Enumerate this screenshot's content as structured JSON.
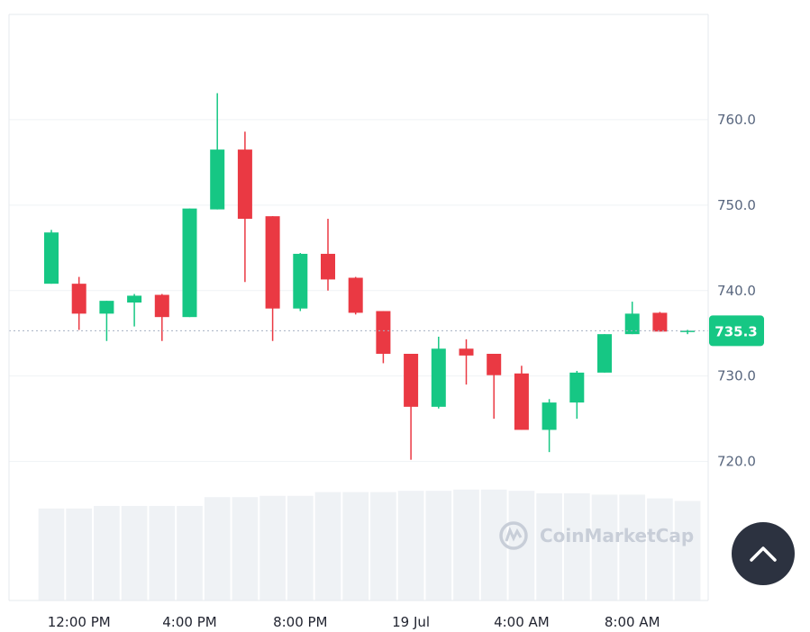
{
  "chart_data": {
    "type": "candlestick",
    "y_ticks": [
      "760.0",
      "750.0",
      "740.0",
      "730.0",
      "720.0"
    ],
    "y_tick_values": [
      760,
      750,
      740,
      730,
      720
    ],
    "x_ticks": [
      "12:00 PM",
      "4:00 PM",
      "8:00 PM",
      "19 Jul",
      "4:00 AM",
      "8:00 AM"
    ],
    "x_tick_candle_index": [
      1,
      5,
      9,
      13,
      17,
      21
    ],
    "ylim": [
      709,
      770
    ],
    "current_price": 735.3,
    "current_price_label": "735.3",
    "colors": {
      "up": "#16c784",
      "down": "#ea3943",
      "volume": "#eff2f5",
      "grid": "#eff2f5",
      "price_tag": "#16c784"
    },
    "candles": [
      {
        "open": 740.8,
        "high": 747.1,
        "low": 740.8,
        "close": 746.8
      },
      {
        "open": 740.8,
        "high": 741.6,
        "low": 735.4,
        "close": 737.3
      },
      {
        "open": 737.3,
        "high": 738.8,
        "low": 734.1,
        "close": 738.8
      },
      {
        "open": 738.6,
        "high": 739.6,
        "low": 735.8,
        "close": 739.4
      },
      {
        "open": 739.5,
        "high": 739.6,
        "low": 734.1,
        "close": 736.9
      },
      {
        "open": 736.9,
        "high": 749.6,
        "low": 736.9,
        "close": 749.6
      },
      {
        "open": 749.5,
        "high": 763.1,
        "low": 749.5,
        "close": 756.5
      },
      {
        "open": 756.5,
        "high": 758.6,
        "low": 741.0,
        "close": 748.4
      },
      {
        "open": 748.7,
        "high": 748.7,
        "low": 734.1,
        "close": 737.9
      },
      {
        "open": 737.9,
        "high": 744.4,
        "low": 737.6,
        "close": 744.3
      },
      {
        "open": 744.3,
        "high": 748.4,
        "low": 740.0,
        "close": 741.3
      },
      {
        "open": 741.5,
        "high": 741.6,
        "low": 737.2,
        "close": 737.4
      },
      {
        "open": 737.6,
        "high": 737.6,
        "low": 731.5,
        "close": 732.6
      },
      {
        "open": 732.6,
        "high": 732.6,
        "low": 720.2,
        "close": 726.4
      },
      {
        "open": 726.4,
        "high": 734.6,
        "low": 726.2,
        "close": 733.2
      },
      {
        "open": 733.2,
        "high": 734.3,
        "low": 729.0,
        "close": 732.4
      },
      {
        "open": 732.6,
        "high": 732.6,
        "low": 725.0,
        "close": 730.1
      },
      {
        "open": 730.3,
        "high": 731.2,
        "low": 723.7,
        "close": 723.7
      },
      {
        "open": 723.7,
        "high": 727.3,
        "low": 721.1,
        "close": 726.9
      },
      {
        "open": 726.9,
        "high": 730.6,
        "low": 725.0,
        "close": 730.4
      },
      {
        "open": 730.4,
        "high": 734.9,
        "low": 730.4,
        "close": 734.9
      },
      {
        "open": 734.9,
        "high": 738.7,
        "low": 734.9,
        "close": 737.3
      },
      {
        "open": 737.4,
        "high": 737.5,
        "low": 735.2,
        "close": 735.2
      },
      {
        "open": 735.2,
        "high": 735.4,
        "low": 734.9,
        "close": 735.3
      }
    ],
    "volumes": [
      0.73,
      0.73,
      0.75,
      0.75,
      0.75,
      0.75,
      0.82,
      0.82,
      0.83,
      0.83,
      0.86,
      0.86,
      0.86,
      0.87,
      0.87,
      0.88,
      0.88,
      0.87,
      0.85,
      0.85,
      0.84,
      0.84,
      0.81,
      0.79
    ]
  },
  "watermark": {
    "text": "CoinMarketCap"
  },
  "scroll_top_button": {
    "icon": "chevron-up-icon"
  }
}
